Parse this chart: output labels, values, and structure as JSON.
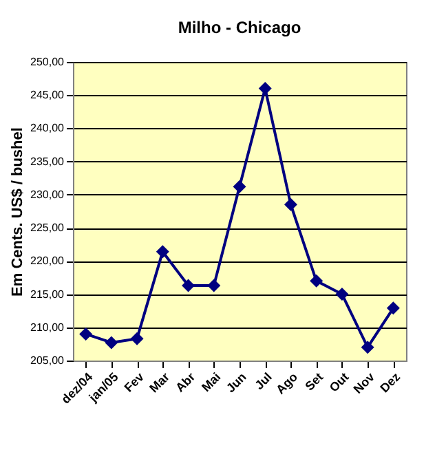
{
  "chart_data": {
    "type": "line",
    "title": "Milho - Chicago",
    "ylabel": "Em Cents. US$ / bushel",
    "categories": [
      "dez/04",
      "jan/05",
      "Fev",
      "Mar",
      "Abr",
      "Mai",
      "Jun",
      "Jul",
      "Ago",
      "Set",
      "Out",
      "Nov",
      "Dez"
    ],
    "series": [
      {
        "color": "#000080",
        "values": [
          209.0,
          207.7,
          208.3,
          221.4,
          216.3,
          216.3,
          231.2,
          246.0,
          228.5,
          217.0,
          215.0,
          207.0,
          212.9
        ]
      }
    ],
    "ylim": [
      205,
      250
    ],
    "yticks": [
      {
        "value": 205,
        "label": "205,00"
      },
      {
        "value": 210,
        "label": "210,00"
      },
      {
        "value": 215,
        "label": "215,00"
      },
      {
        "value": 220,
        "label": "220,00"
      },
      {
        "value": 225,
        "label": "225,00"
      },
      {
        "value": 230,
        "label": "230,00"
      },
      {
        "value": 235,
        "label": "235,00"
      },
      {
        "value": 240,
        "label": "240,00"
      },
      {
        "value": 245,
        "label": "245,00"
      },
      {
        "value": 250,
        "label": "250,00"
      }
    ],
    "grid": "y",
    "marker": "diamond",
    "line_style": "solid"
  }
}
